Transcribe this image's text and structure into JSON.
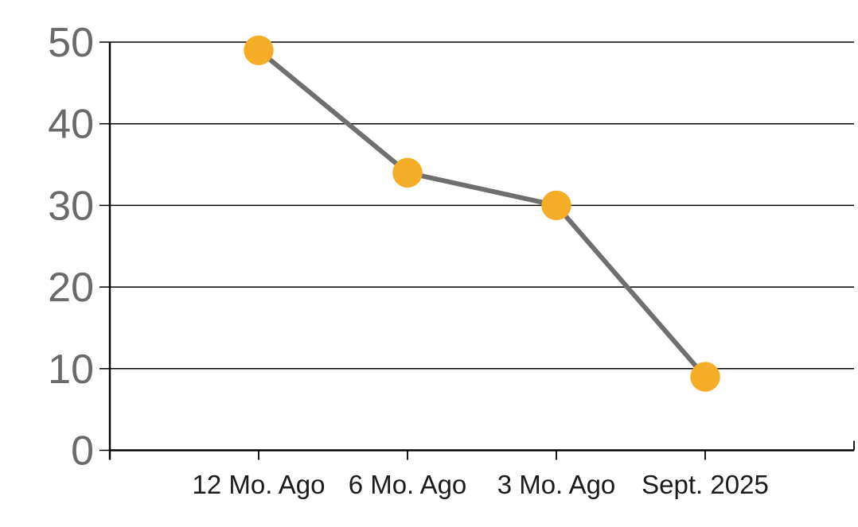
{
  "chart_data": {
    "type": "line",
    "categories": [
      "12 Mo. Ago",
      "6 Mo. Ago",
      "3 Mo. Ago",
      "Sept. 2025"
    ],
    "values": [
      49,
      34,
      30,
      9
    ],
    "title": "",
    "xlabel": "",
    "ylabel": "",
    "ylim": [
      0,
      50
    ],
    "yticks": [
      0,
      10,
      20,
      30,
      40,
      50
    ],
    "grid": "horizontal-only",
    "legend": "none",
    "colors": {
      "marker": "#F5AC27",
      "line": "#6F6F6F",
      "axis": "#000000",
      "gridline": "#000000",
      "y_tick_label": "#6A6A6A",
      "x_tick_label": "#1B1B1B",
      "background": "#FFFFFF"
    }
  }
}
